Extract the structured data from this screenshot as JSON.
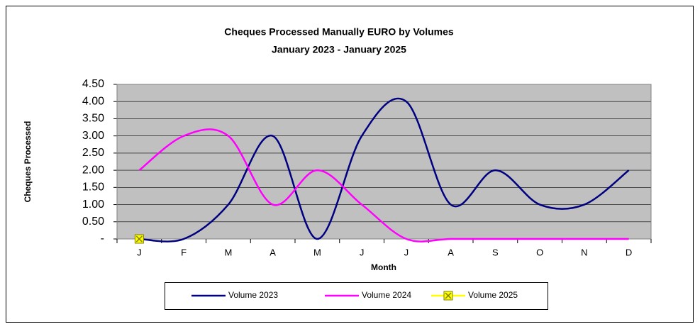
{
  "chart_data": {
    "type": "line",
    "title": "Cheques Processed Manually EURO by Volumes",
    "subtitle": "January 2023 - January 2025",
    "x_label": "Month",
    "y_label": "Cheques Processed",
    "categories": [
      "J",
      "F",
      "M",
      "A",
      "M",
      "J",
      "J",
      "A",
      "S",
      "O",
      "N",
      "D"
    ],
    "series": [
      {
        "name": "Volume 2023",
        "color": "#000080",
        "values": [
          0,
          0,
          1,
          3,
          0,
          3,
          4,
          1,
          2,
          1,
          1,
          2
        ]
      },
      {
        "name": "Volume 2024",
        "color": "#ff00ff",
        "values": [
          2,
          3,
          3,
          1,
          2,
          1,
          0,
          0,
          0,
          0,
          0,
          0
        ]
      },
      {
        "name": "Volume 2025",
        "color": "#ffff00",
        "marker": "x",
        "values": [
          0,
          null,
          null,
          null,
          null,
          null,
          null,
          null,
          null,
          null,
          null,
          null
        ]
      }
    ],
    "ylim": [
      0,
      4.5
    ],
    "yticks": [
      {
        "value": 0,
        "label": "-"
      },
      {
        "value": 0.5,
        "label": "0.50"
      },
      {
        "value": 1,
        "label": "1.00"
      },
      {
        "value": 1.5,
        "label": "1.50"
      },
      {
        "value": 2,
        "label": "2.00"
      },
      {
        "value": 2.5,
        "label": "2.50"
      },
      {
        "value": 3,
        "label": "3.00"
      },
      {
        "value": 3.5,
        "label": "3.50"
      },
      {
        "value": 4,
        "label": "4.00"
      },
      {
        "value": 4.5,
        "label": "4.50"
      }
    ],
    "grid": true,
    "smooth": true,
    "legend": "bottom"
  }
}
